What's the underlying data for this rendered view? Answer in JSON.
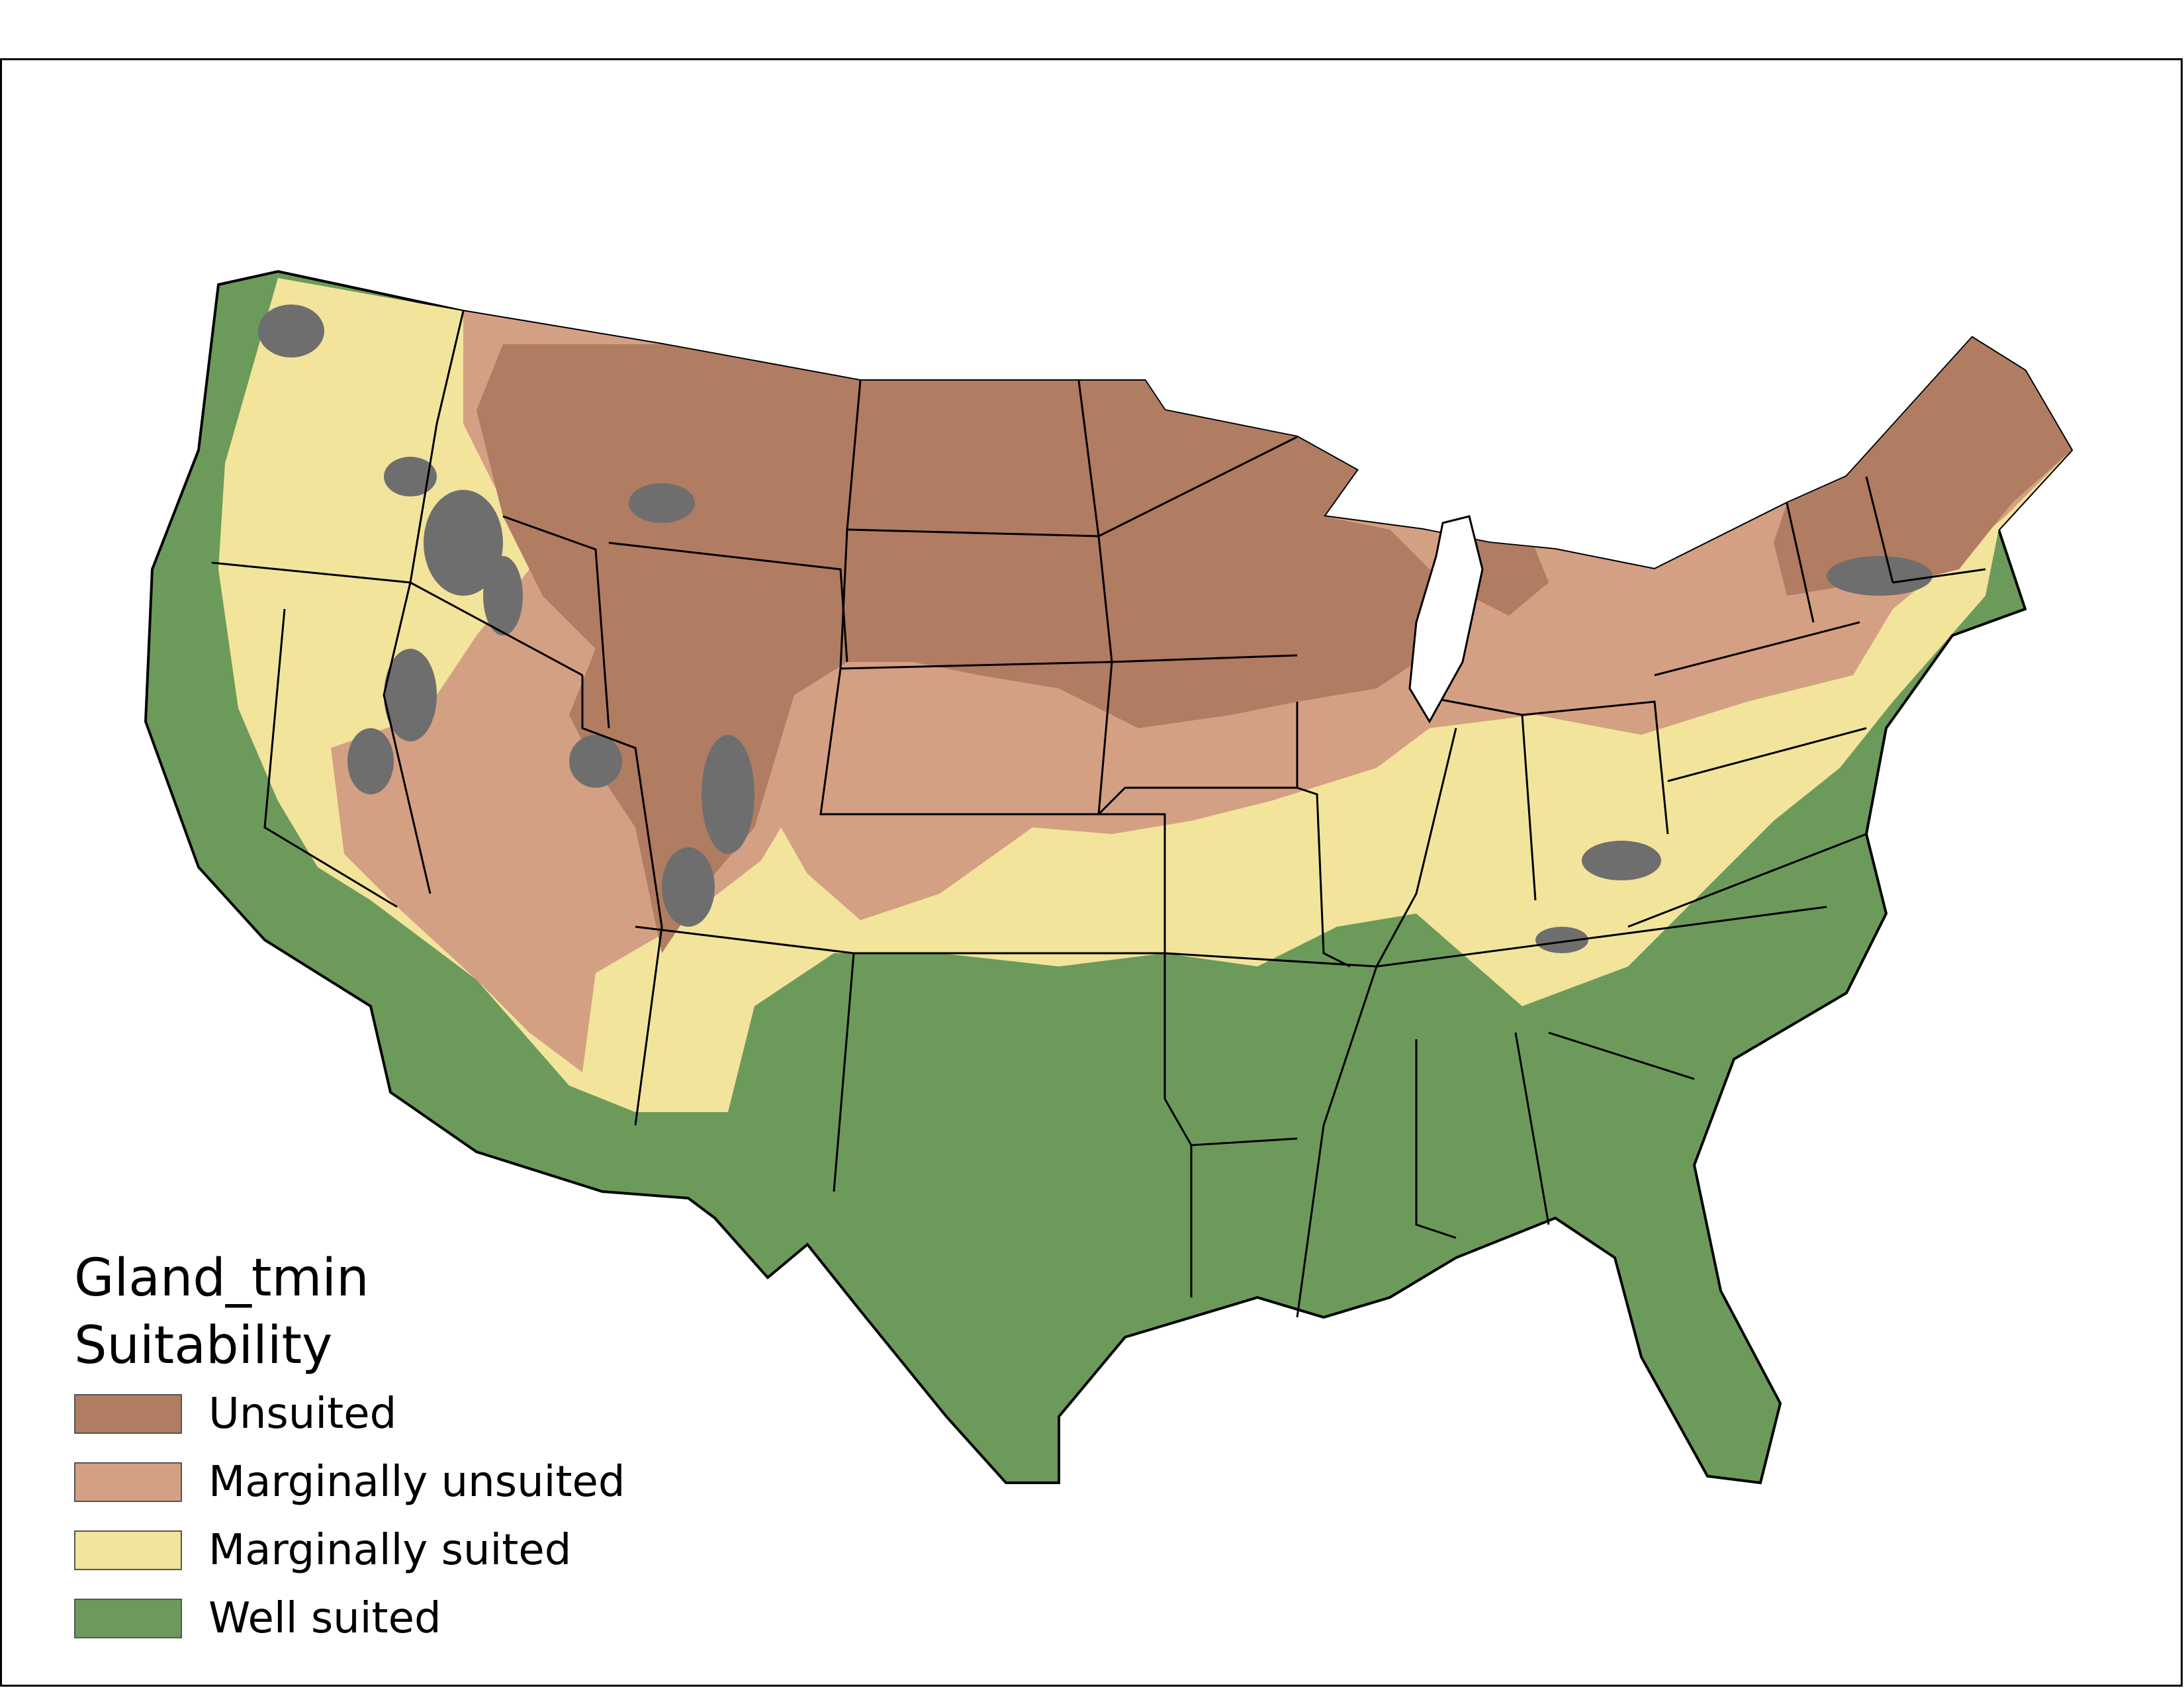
{
  "legend": {
    "title_line1": "Gland_tmin",
    "title_line2": "Suitability",
    "items": [
      {
        "label": "Unsuited",
        "color": "#b07c62"
      },
      {
        "label": "Marginally unsuited",
        "color": "#d4a083"
      },
      {
        "label": "Marginally suited",
        "color": "#f2e49b"
      },
      {
        "label": "Well suited",
        "color": "#6c9a5b"
      }
    ]
  },
  "colors": {
    "state_border": "#000000",
    "terrain_gray": "#6e6e6e",
    "background": "#ffffff"
  }
}
